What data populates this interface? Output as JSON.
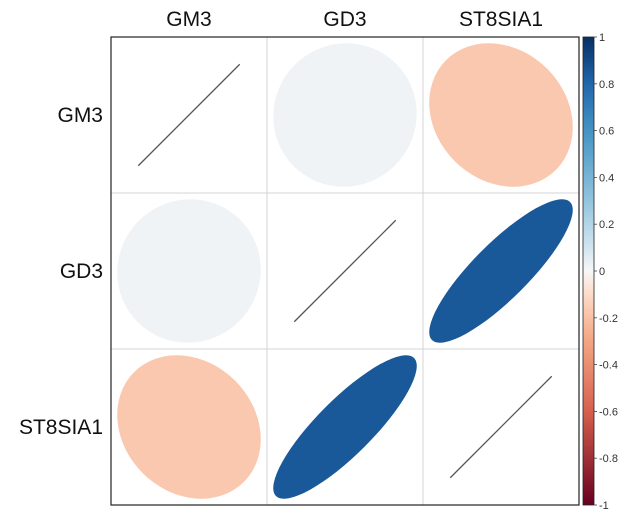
{
  "chart_data": {
    "type": "heatmap",
    "variables": [
      "GM3",
      "GD3",
      "ST8SIA1"
    ],
    "matrix": [
      [
        1,
        0.02,
        -0.17
      ],
      [
        0.02,
        1,
        0.85
      ],
      [
        -0.17,
        0.85,
        1
      ]
    ],
    "colorbar": {
      "ticks": [
        "1",
        "0.8",
        "0.6",
        "0.4",
        "0.2",
        "0",
        "-0.2",
        "-0.4",
        "-0.6",
        "-0.8",
        "-1"
      ],
      "range": [
        -1,
        1
      ],
      "colors": {
        "negative": "#67001F",
        "neutral": "#F7F7F7",
        "positive": "#053061"
      }
    },
    "grid": true
  }
}
